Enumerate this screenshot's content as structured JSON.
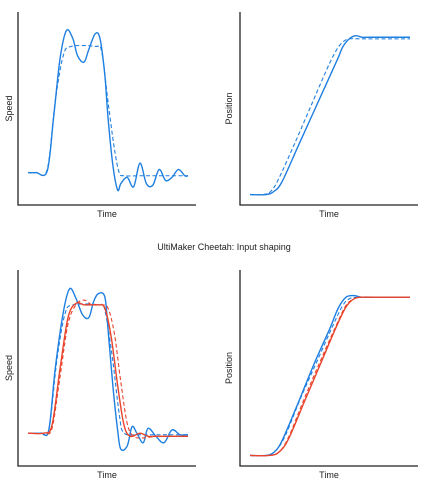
{
  "title": "UltiMaker Cheetah: Input shaping",
  "colors": {
    "blue": "#1f7fe0",
    "red": "#e8442c",
    "axis": "#222222"
  },
  "chart_data": [
    {
      "type": "line",
      "xlabel": "Time",
      "ylabel": "Speed",
      "grid": false,
      "series": [
        {
          "color": "blue",
          "style": "solid",
          "x": [
            0,
            0.05,
            0.12,
            0.16,
            0.2,
            0.24,
            0.28,
            0.31,
            0.35,
            0.38,
            0.42,
            0.45,
            0.48,
            0.5,
            0.53,
            0.56,
            0.58,
            0.62,
            0.66,
            0.7,
            0.74,
            0.78,
            0.82,
            0.86,
            0.9,
            0.94,
            0.98,
            1.0
          ],
          "y": [
            0.1,
            0.1,
            0.11,
            0.45,
            0.82,
            1.0,
            0.95,
            0.84,
            0.8,
            0.88,
            0.98,
            0.95,
            0.72,
            0.45,
            0.15,
            -0.01,
            0.03,
            0.07,
            0.01,
            0.16,
            0.03,
            0.02,
            0.12,
            0.05,
            0.07,
            0.12,
            0.08,
            0.08
          ]
        },
        {
          "color": "blue",
          "style": "dashed",
          "x": [
            0,
            0.05,
            0.12,
            0.17,
            0.22,
            0.27,
            0.42,
            0.46,
            0.5,
            0.54,
            0.57,
            0.6,
            0.7,
            0.8,
            0.9,
            1.0
          ],
          "y": [
            0.1,
            0.1,
            0.12,
            0.55,
            0.84,
            0.9,
            0.9,
            0.87,
            0.55,
            0.25,
            0.1,
            0.08,
            0.08,
            0.08,
            0.08,
            0.08
          ]
        }
      ]
    },
    {
      "type": "line",
      "xlabel": "Time",
      "ylabel": "Position",
      "grid": false,
      "series": [
        {
          "color": "blue",
          "style": "solid",
          "x": [
            0,
            0.1,
            0.15,
            0.2,
            0.3,
            0.4,
            0.5,
            0.55,
            0.58,
            0.62,
            0.66,
            0.7,
            0.75,
            0.8,
            0.85,
            0.9,
            1.0
          ],
          "y": [
            0.0,
            0.0,
            0.02,
            0.08,
            0.3,
            0.52,
            0.74,
            0.85,
            0.92,
            0.97,
            0.99,
            0.98,
            0.98,
            0.98,
            0.98,
            0.98,
            0.98
          ]
        },
        {
          "color": "blue",
          "style": "dashed",
          "x": [
            0,
            0.08,
            0.13,
            0.18,
            0.28,
            0.38,
            0.48,
            0.54,
            0.58,
            0.62,
            0.7,
            0.8,
            0.9,
            1.0
          ],
          "y": [
            0.0,
            0.0,
            0.02,
            0.1,
            0.32,
            0.55,
            0.78,
            0.9,
            0.95,
            0.97,
            0.97,
            0.97,
            0.97,
            0.97
          ]
        }
      ]
    },
    {
      "type": "line",
      "xlabel": "Time",
      "ylabel": "Speed",
      "grid": false,
      "series": [
        {
          "color": "blue",
          "style": "solid",
          "x": [
            0,
            0.08,
            0.13,
            0.17,
            0.22,
            0.26,
            0.3,
            0.34,
            0.38,
            0.41,
            0.44,
            0.48,
            0.5,
            0.53,
            0.56,
            0.58,
            0.62,
            0.65,
            0.68,
            0.72,
            0.75,
            0.8,
            0.85,
            0.9,
            0.95,
            1.0
          ],
          "y": [
            0.1,
            0.1,
            0.12,
            0.5,
            0.85,
            1.0,
            0.94,
            0.84,
            0.82,
            0.92,
            0.97,
            0.95,
            0.75,
            0.4,
            0.12,
            0.0,
            0.02,
            0.14,
            0.1,
            0.04,
            0.13,
            0.08,
            0.04,
            0.12,
            0.09,
            0.09
          ]
        },
        {
          "color": "blue",
          "style": "dashed",
          "x": [
            0,
            0.08,
            0.13,
            0.18,
            0.23,
            0.28,
            0.44,
            0.48,
            0.53,
            0.57,
            0.6,
            0.7,
            0.8,
            0.9,
            1.0
          ],
          "y": [
            0.1,
            0.1,
            0.12,
            0.55,
            0.84,
            0.9,
            0.9,
            0.87,
            0.55,
            0.22,
            0.1,
            0.09,
            0.09,
            0.09,
            0.09
          ]
        },
        {
          "color": "red",
          "style": "solid",
          "x": [
            0,
            0.1,
            0.15,
            0.2,
            0.25,
            0.3,
            0.35,
            0.4,
            0.44,
            0.48,
            0.52,
            0.56,
            0.6,
            0.64,
            0.7,
            0.75,
            0.8,
            0.9,
            1.0
          ],
          "y": [
            0.1,
            0.1,
            0.15,
            0.5,
            0.82,
            0.91,
            0.9,
            0.9,
            0.9,
            0.88,
            0.7,
            0.4,
            0.15,
            0.08,
            0.1,
            0.08,
            0.08,
            0.08,
            0.08
          ]
        },
        {
          "color": "red",
          "style": "dashed",
          "x": [
            0,
            0.1,
            0.15,
            0.2,
            0.25,
            0.3,
            0.35,
            0.4,
            0.46,
            0.5,
            0.54,
            0.58,
            0.62,
            0.66,
            0.72,
            0.8,
            0.9,
            1.0
          ],
          "y": [
            0.1,
            0.1,
            0.13,
            0.45,
            0.78,
            0.9,
            0.93,
            0.9,
            0.9,
            0.88,
            0.72,
            0.42,
            0.16,
            0.08,
            0.07,
            0.08,
            0.08,
            0.08
          ]
        }
      ]
    },
    {
      "type": "line",
      "xlabel": "Time",
      "ylabel": "Position",
      "grid": false,
      "series": [
        {
          "color": "blue",
          "style": "solid",
          "x": [
            0,
            0.1,
            0.15,
            0.2,
            0.3,
            0.4,
            0.5,
            0.55,
            0.6,
            0.65,
            0.7,
            0.8,
            0.9,
            1.0
          ],
          "y": [
            0.0,
            0.0,
            0.02,
            0.09,
            0.32,
            0.56,
            0.78,
            0.9,
            0.97,
            0.98,
            0.97,
            0.97,
            0.97,
            0.97
          ]
        },
        {
          "color": "blue",
          "style": "dashed",
          "x": [
            0,
            0.1,
            0.16,
            0.22,
            0.32,
            0.42,
            0.52,
            0.58,
            0.62,
            0.67,
            0.75,
            0.85,
            1.0
          ],
          "y": [
            0.0,
            0.0,
            0.03,
            0.12,
            0.36,
            0.58,
            0.8,
            0.92,
            0.96,
            0.97,
            0.97,
            0.97,
            0.97
          ]
        },
        {
          "color": "red",
          "style": "solid",
          "x": [
            0,
            0.12,
            0.18,
            0.24,
            0.34,
            0.44,
            0.54,
            0.6,
            0.65,
            0.7,
            0.8,
            0.9,
            1.0
          ],
          "y": [
            0.0,
            0.0,
            0.02,
            0.1,
            0.33,
            0.56,
            0.79,
            0.91,
            0.96,
            0.97,
            0.97,
            0.97,
            0.97
          ]
        },
        {
          "color": "red",
          "style": "dashed",
          "x": [
            0,
            0.12,
            0.18,
            0.24,
            0.34,
            0.44,
            0.54,
            0.6,
            0.65,
            0.7,
            0.8,
            0.9,
            1.0
          ],
          "y": [
            0.0,
            0.0,
            0.02,
            0.11,
            0.35,
            0.58,
            0.8,
            0.92,
            0.96,
            0.97,
            0.97,
            0.97,
            0.97
          ]
        }
      ]
    }
  ]
}
